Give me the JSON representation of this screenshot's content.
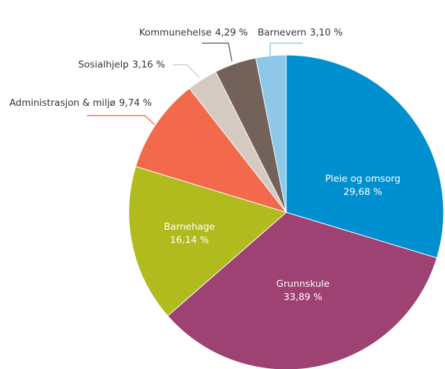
{
  "chart_data": {
    "type": "pie",
    "categories": [
      "Pleie og omsorg",
      "Grunnskule",
      "Barnehage",
      "Administrasjon & miljø",
      "Sosialhjelp",
      "Kommunehelse",
      "Barnevern"
    ],
    "values": [
      29.68,
      33.89,
      16.14,
      9.74,
      3.16,
      4.29,
      3.1
    ],
    "value_labels": [
      "29,68 %",
      "33,89 %",
      "16,14 %",
      "9,74 %",
      "3,16 %",
      "4,29 %",
      "3,10 %"
    ],
    "colors": [
      "#0090d0",
      "#9e4173",
      "#b2bb1e",
      "#f26a4b",
      "#d5cac2",
      "#736259",
      "#8dc8e8"
    ]
  }
}
